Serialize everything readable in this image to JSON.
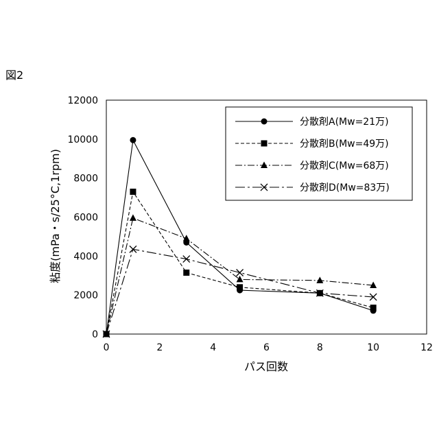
{
  "figure_label": "図2",
  "chart_data": {
    "type": "line",
    "xlabel": "パス回数",
    "ylabel": "粘度(mPa・s/25°C,1rpm)",
    "xlim": [
      0,
      12
    ],
    "ylim": [
      0,
      12000
    ],
    "xticks": [
      0,
      2,
      4,
      6,
      8,
      10,
      12
    ],
    "yticks": [
      0,
      2000,
      4000,
      6000,
      8000,
      10000,
      12000
    ],
    "grid": false,
    "legend_position": "top-right",
    "x": [
      0,
      1,
      3,
      5,
      8,
      10
    ],
    "series": [
      {
        "name": "分散剤A(Mw=21万)",
        "marker": "circle",
        "dash": "solid",
        "values": [
          0,
          9950,
          4700,
          2250,
          2100,
          1200
        ]
      },
      {
        "name": "分散剤B(Mw=49万)",
        "marker": "square",
        "dash": "dashed",
        "values": [
          0,
          7300,
          3150,
          2400,
          2100,
          1350
        ]
      },
      {
        "name": "分散剤C(Mw=68万)",
        "marker": "triangle",
        "dash": "dashdot",
        "values": [
          0,
          5950,
          4900,
          2800,
          2750,
          2500
        ]
      },
      {
        "name": "分散剤D(Mw=83万)",
        "marker": "x",
        "dash": "longdashdot",
        "values": [
          0,
          4350,
          3850,
          3150,
          2100,
          1900
        ]
      }
    ]
  }
}
